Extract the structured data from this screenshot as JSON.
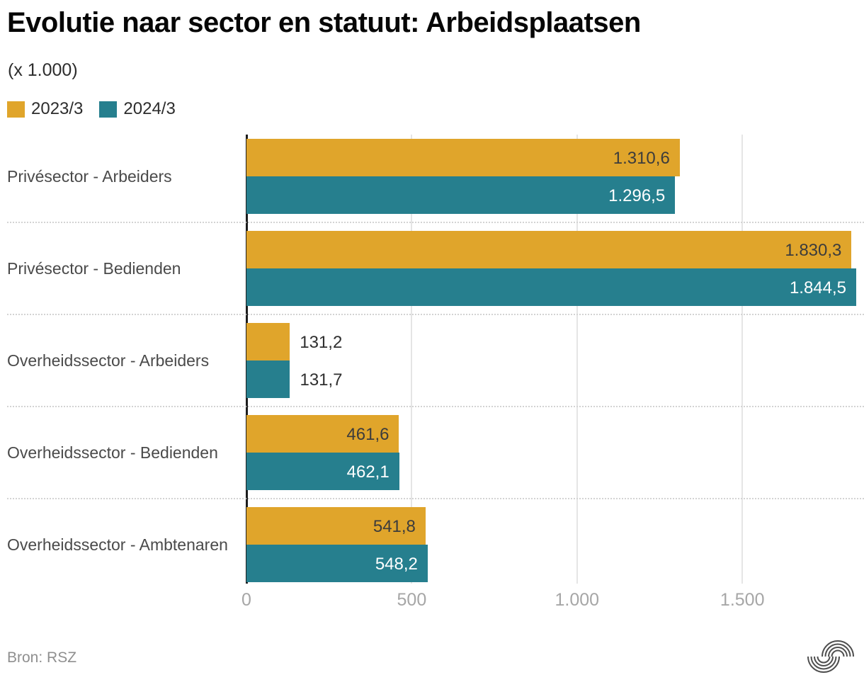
{
  "title": "Evolutie naar sector en statuut: Arbeidsplaatsen",
  "subtitle": "(x 1.000)",
  "source": "Bron: RSZ",
  "logo": {
    "icon": "statbel-arcs-logo",
    "color": "#4f4f4f"
  },
  "chart_data": {
    "type": "bar",
    "orientation": "horizontal",
    "title": "Evolutie naar sector en statuut: Arbeidsplaatsen",
    "unit": "(x 1.000)",
    "grid": "vertical",
    "legend_position": "top-left",
    "categories": [
      "Privésector - Arbeiders",
      "Privésector - Bedienden",
      "Overheidssector - Arbeiders",
      "Overheidssector - Bedienden",
      "Overheidssector - Ambtenaren"
    ],
    "series": [
      {
        "name": "2023/3",
        "color": "#E0A52B",
        "values": [
          1310.6,
          1830.3,
          131.2,
          461.6,
          541.8
        ],
        "value_labels": [
          "1.310,6",
          "1.830,3",
          "131,2",
          "461,6",
          "541,8"
        ]
      },
      {
        "name": "2024/3",
        "color": "#267F8E",
        "values": [
          1296.5,
          1844.5,
          131.7,
          462.1,
          548.2
        ],
        "value_labels": [
          "1.296,5",
          "1.844,5",
          "131,7",
          "462,1",
          "548,2"
        ]
      }
    ],
    "x_axis": {
      "min": 0,
      "max": 1868,
      "ticks": [
        0,
        500,
        1000,
        1500
      ],
      "tick_labels": [
        "0",
        "500",
        "1.000",
        "1.500"
      ]
    },
    "label_colors": {
      "on_series_2023": "#3c3c3c",
      "on_series_2024": "#ffffff",
      "outside": "#2f2f2f"
    },
    "axis_color": "#1d1d1d",
    "gridline_color": "#e5e5e5",
    "separator_color": "#d3d3d3"
  }
}
